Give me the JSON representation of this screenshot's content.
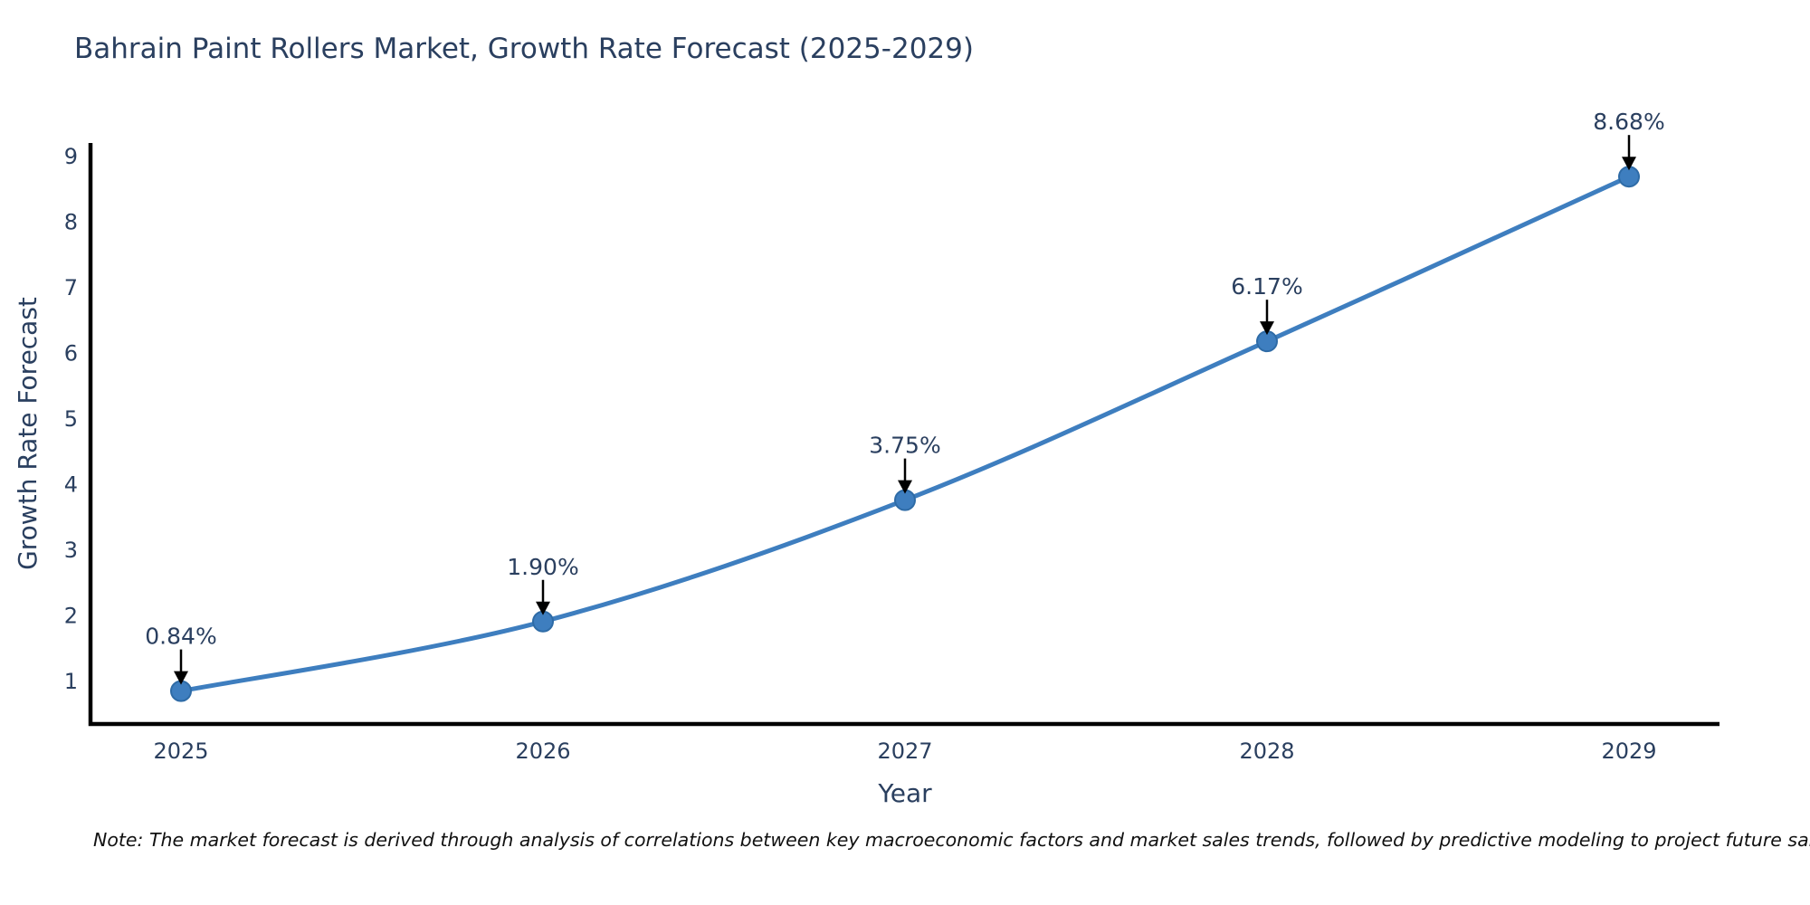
{
  "chart_data": {
    "type": "line",
    "title": "Bahrain Paint Rollers Market, Growth Rate Forecast (2025-2029)",
    "xlabel": "Year",
    "ylabel": "Growth Rate Forecast",
    "x": [
      2025,
      2026,
      2027,
      2028,
      2029
    ],
    "series": [
      {
        "name": "Growth Rate Forecast",
        "values": [
          0.84,
          1.9,
          3.75,
          6.17,
          8.68
        ],
        "point_labels": [
          "0.84%",
          "1.90%",
          "3.75%",
          "6.17%",
          "8.68%"
        ]
      }
    ],
    "y_ticks": [
      1,
      2,
      3,
      4,
      5,
      6,
      7,
      8,
      9
    ],
    "ylim": [
      0.35,
      9.2
    ],
    "xlim": [
      2024.75,
      2029.25
    ],
    "grid": false,
    "legend_position": "none",
    "line_shape": "spline",
    "marker": "circle",
    "annotation_style": "percentage labels with black down-arrows above each data point"
  },
  "note": "Note: The market forecast is derived through analysis of correlations between key macroeconomic factors and market sales trends, followed by predictive modeling to project future sales.",
  "colors": {
    "line": "#3e7ebf",
    "marker_fill": "#3e7ebf",
    "marker_stroke": "#2e6ba6",
    "axis_line": "#000000",
    "tick_text": "#2a3f5f",
    "title_text": "#2a3f5f",
    "annotation_text": "#2a3f5f",
    "arrow": "#000000",
    "note_text": "#111111",
    "background": "#ffffff"
  }
}
